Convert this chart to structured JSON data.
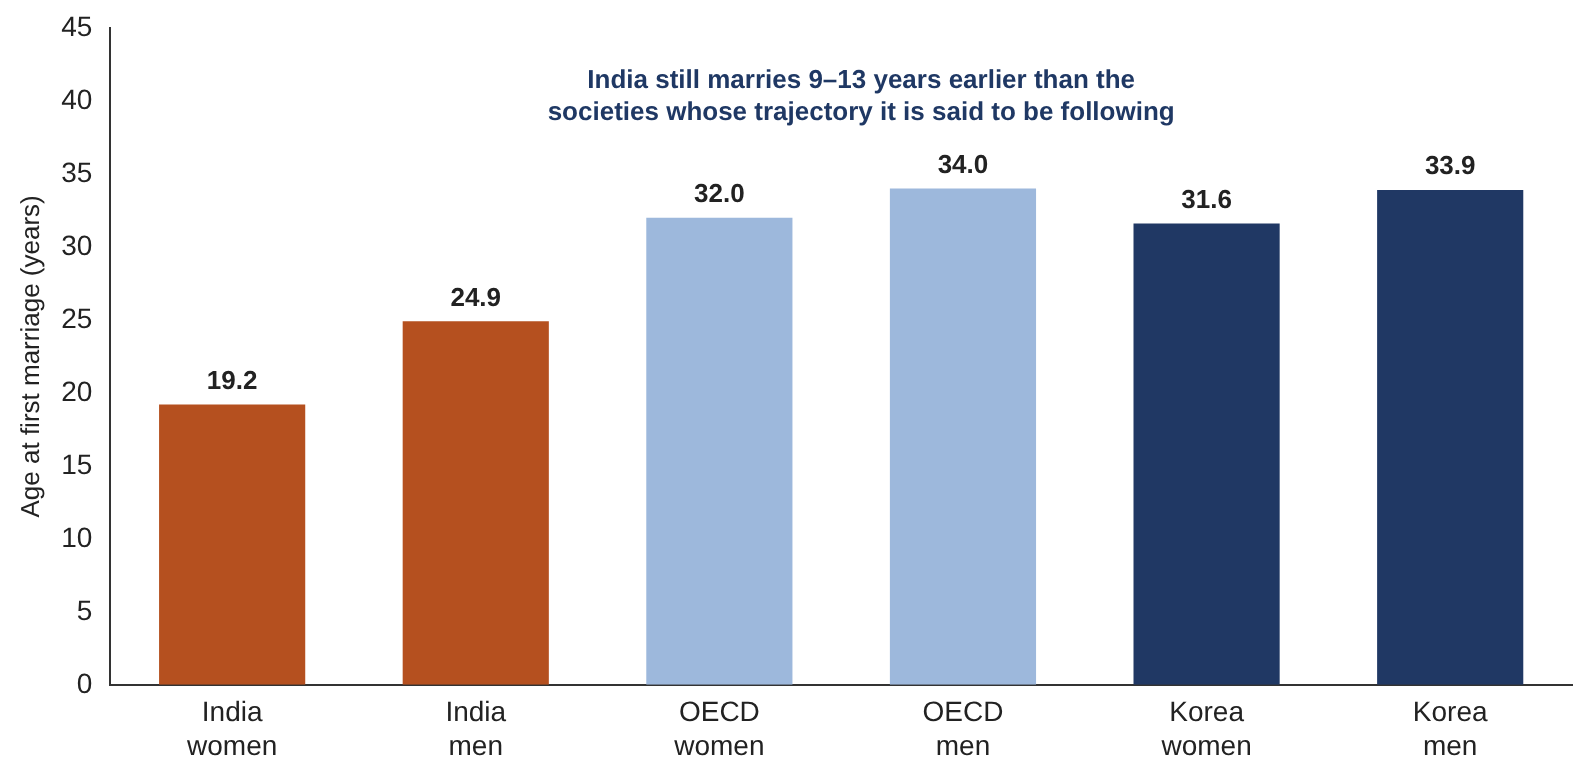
{
  "chart_data": {
    "type": "bar",
    "title": "India still marries 9–13 years earlier than the\nsocieties whose trajectory it is said to be following",
    "ylabel": "Age at first marriage (years)",
    "categories": [
      "India women",
      "India men",
      "OECD women",
      "OECD men",
      "Korea women",
      "Korea men"
    ],
    "values": [
      19.2,
      24.9,
      32.0,
      34.0,
      31.6,
      33.9
    ],
    "value_labels": [
      "19.2",
      "24.9",
      "32.0",
      "34.0",
      "31.6",
      "33.9"
    ],
    "colors": [
      "#b5501f",
      "#b5501f",
      "#9db8dc",
      "#9db8dc",
      "#203864",
      "#203864"
    ],
    "ylim": [
      0,
      45
    ],
    "yticks": [
      0,
      5,
      10,
      15,
      20,
      25,
      30,
      35,
      40,
      45
    ],
    "grid": false,
    "legend": false
  }
}
